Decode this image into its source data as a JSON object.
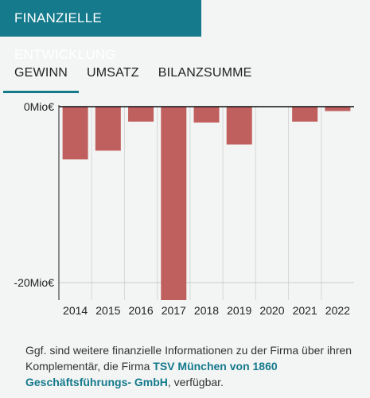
{
  "header": {
    "title": "FINANZIELLE ENTWICKLUNG"
  },
  "tabs": [
    {
      "label": "GEWINN",
      "active": true
    },
    {
      "label": "UMSATZ",
      "active": false
    },
    {
      "label": "BILANZSUMME",
      "active": false
    }
  ],
  "colors": {
    "accent": "#147a8c",
    "bar": "#c0605e",
    "background": "#f3f4f4"
  },
  "chart_data": {
    "type": "bar",
    "categories": [
      "2014",
      "2015",
      "2016",
      "2017",
      "2018",
      "2019",
      "2020",
      "2021",
      "2022"
    ],
    "values": [
      -6.0,
      -5.0,
      -1.7,
      -22.5,
      -1.8,
      -4.3,
      0,
      -1.7,
      -0.5
    ],
    "y_ticks": [
      {
        "value": 0,
        "label": "0Mio€"
      },
      {
        "value": -20,
        "label": "-20Mio€"
      }
    ],
    "ylim": [
      -22,
      0
    ],
    "xlabel": "",
    "ylabel": "",
    "grid": true
  },
  "footer": {
    "text_before": "Ggf. sind weitere finanzielle Informationen zu der Firma über ihren Komplementär, die Firma ",
    "link_text": "TSV München von 1860 Geschäftsführungs- GmbH",
    "text_after": ", verfügbar."
  }
}
